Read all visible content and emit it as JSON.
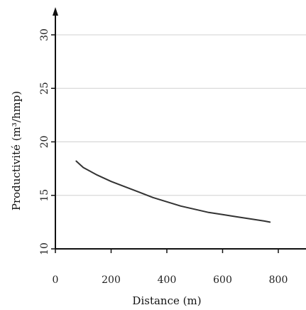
{
  "chart_data": {
    "type": "line",
    "title": "",
    "xlabel": "Distance (m)",
    "ylabel": "Productivité (m³/hmp)",
    "xlim": [
      0,
      900
    ],
    "ylim": [
      10,
      32
    ],
    "x_ticks": [
      0,
      200,
      400,
      600,
      800
    ],
    "x_tick_labels": [
      "0",
      "200",
      "400",
      "600",
      "800"
    ],
    "y_ticks": [
      10,
      15,
      20,
      25,
      30
    ],
    "y_tick_labels": [
      "10",
      "15",
      "20",
      "25",
      "30"
    ],
    "grid": "horizontal",
    "legend": "none",
    "series": [
      {
        "x": [
          75,
          100,
          150,
          200,
          250,
          300,
          350,
          400,
          450,
          500,
          550,
          600,
          650,
          700,
          750,
          770
        ],
        "y": [
          18.2,
          17.6,
          16.9,
          16.3,
          15.8,
          15.3,
          14.8,
          14.4,
          14.0,
          13.7,
          13.4,
          13.2,
          13.0,
          12.8,
          12.6,
          12.5
        ]
      }
    ]
  },
  "colors": {
    "line": "#333333",
    "axis": "#111111",
    "grid": "#d0d0d0"
  }
}
